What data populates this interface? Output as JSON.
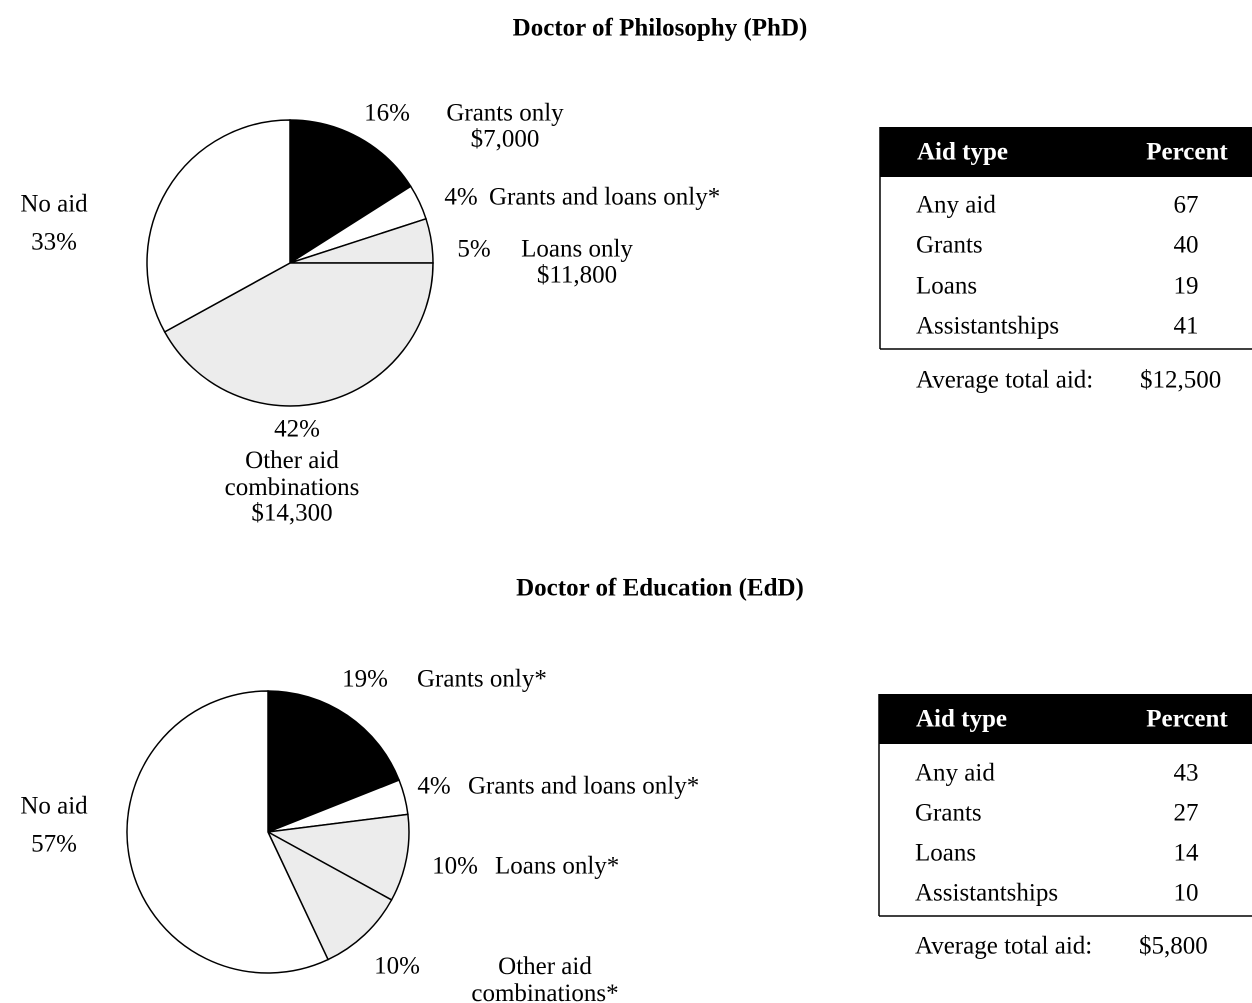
{
  "chart_data": [
    {
      "type": "pie",
      "title": "Doctor of Philosophy (PhD)",
      "categories": [
        "Grants only",
        "Grants and loans only*",
        "Loans only",
        "Other aid combinations",
        "No aid"
      ],
      "values": [
        16,
        4,
        5,
        42,
        33
      ],
      "value_labels": [
        "16%",
        "4%",
        "5%",
        "42%",
        "33%"
      ],
      "amount_labels": [
        "$7,000",
        null,
        "$11,800",
        "$14,300",
        null
      ],
      "colors": [
        "#000000",
        "#ffffff",
        "#ececec",
        "#ececec",
        "#ffffff"
      ]
    },
    {
      "type": "pie",
      "title": "Doctor of Education (EdD)",
      "categories": [
        "Grants only*",
        "Grants and loans only*",
        "Loans only*",
        "Other aid combinations*",
        "No aid"
      ],
      "values": [
        19,
        4,
        10,
        10,
        57
      ],
      "value_labels": [
        "19%",
        "4%",
        "10%",
        "10%",
        "57%"
      ],
      "amount_labels": [
        null,
        null,
        null,
        null,
        null
      ],
      "colors": [
        "#000000",
        "#ffffff",
        "#ececec",
        "#ececec",
        "#ffffff"
      ]
    }
  ],
  "tables": [
    {
      "header": [
        "Aid type",
        "Percent"
      ],
      "rows": [
        [
          "Any aid",
          "67"
        ],
        [
          "Grants",
          "40"
        ],
        [
          "Loans",
          "19"
        ],
        [
          "Assistantships",
          "41"
        ]
      ],
      "average_label": "Average total aid:",
      "average": "$12,500"
    },
    {
      "header": [
        "Aid type",
        "Percent"
      ],
      "rows": [
        [
          "Any aid",
          "43"
        ],
        [
          "Grants",
          "27"
        ],
        [
          "Loans",
          "14"
        ],
        [
          "Assistantships",
          "10"
        ]
      ],
      "average_label": "Average total aid:",
      "average": "$5,800"
    }
  ]
}
